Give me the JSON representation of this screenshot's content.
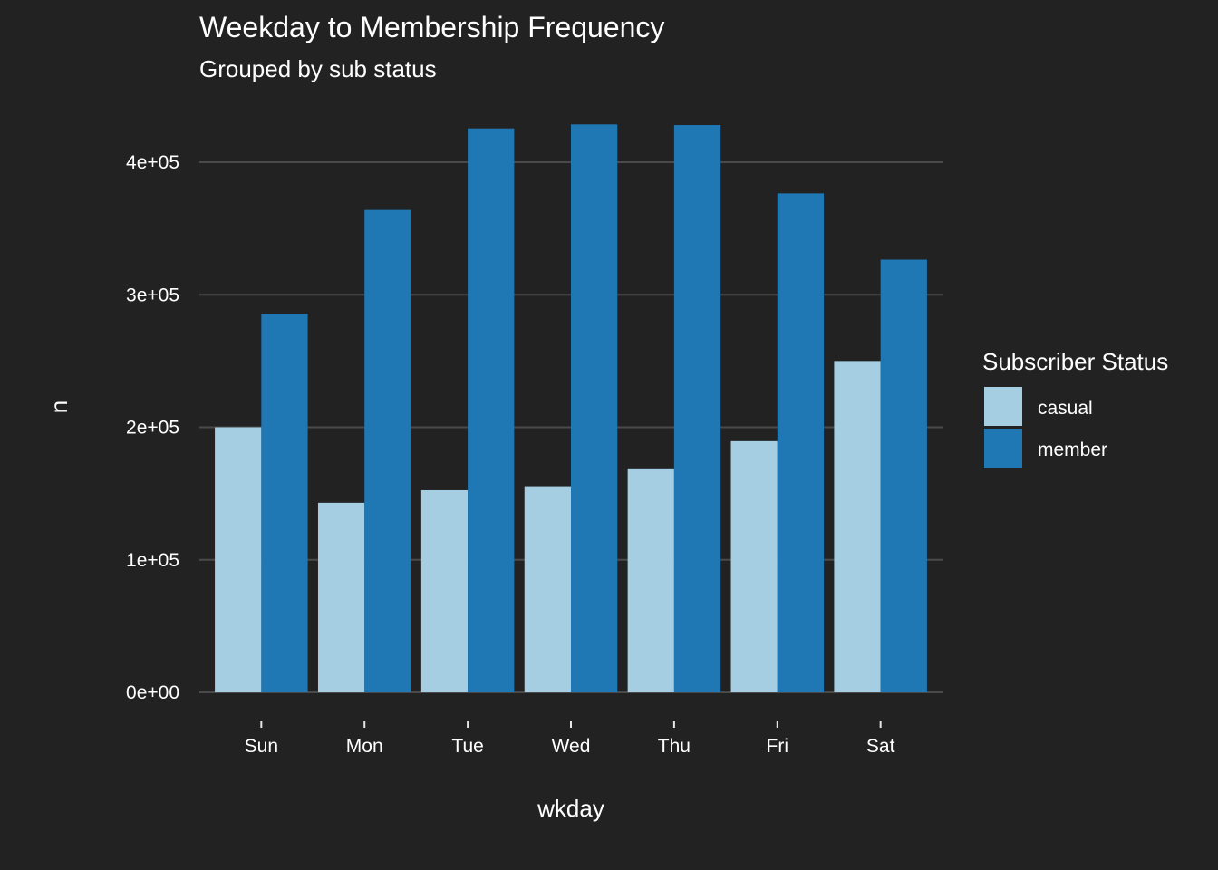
{
  "chart_data": {
    "type": "bar",
    "title": "Weekday to Membership Frequency",
    "subtitle": "Grouped by sub status",
    "xlabel": "wkday",
    "ylabel": "n",
    "categories": [
      "Sun",
      "Mon",
      "Tue",
      "Wed",
      "Thu",
      "Fri",
      "Sat"
    ],
    "series": [
      {
        "name": "casual",
        "color": "#a6cee3",
        "values": [
          200000,
          143000,
          152500,
          155500,
          169000,
          189500,
          250000
        ]
      },
      {
        "name": "member",
        "color": "#1f78b4",
        "values": [
          285500,
          364000,
          425500,
          428500,
          428000,
          376500,
          326500
        ]
      }
    ],
    "ylim": [
      0,
      430000
    ],
    "yticks": [
      0,
      100000,
      200000,
      300000,
      400000
    ],
    "ytick_labels": [
      "0e+00",
      "1e+05",
      "2e+05",
      "3e+05",
      "4e+05"
    ],
    "legend": {
      "title": "Subscriber Status",
      "position": "right"
    },
    "grid": true,
    "background": "#222222",
    "grid_color": "#4a4a4a"
  }
}
